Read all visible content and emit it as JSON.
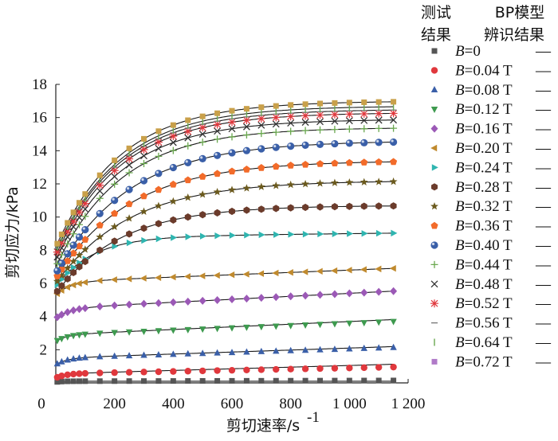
{
  "chart_data": {
    "type": "scatter",
    "xlabel": "剪切速率/s",
    "xlabel_sup": "-1",
    "ylabel": "剪切应力/kPa",
    "xlim": [
      0,
      1200
    ],
    "ylim": [
      0,
      18
    ],
    "x_ticks": [
      {
        "value": 0,
        "label": "0"
      },
      {
        "value": 200,
        "label": "200"
      },
      {
        "value": 400,
        "label": "400"
      },
      {
        "value": 600,
        "label": "600"
      },
      {
        "value": 800,
        "label": "800"
      },
      {
        "value": 1000,
        "label": "1 000"
      },
      {
        "value": 1200,
        "label": "1 200"
      }
    ],
    "y_ticks": [
      {
        "value": 2,
        "label": "2"
      },
      {
        "value": 4,
        "label": "4"
      },
      {
        "value": 6,
        "label": "6"
      },
      {
        "value": 8,
        "label": "8"
      },
      {
        "value": 10,
        "label": "10"
      },
      {
        "value": 12,
        "label": "12"
      },
      {
        "value": 14,
        "label": "14"
      },
      {
        "value": 16,
        "label": "16"
      },
      {
        "value": 18,
        "label": "18"
      }
    ],
    "origin_label": "0",
    "legend": {
      "placement": "right",
      "col1_header": [
        "测试",
        "结果"
      ],
      "col2_header": [
        "BP模型",
        "辨识结果"
      ]
    },
    "x_points": [
      5,
      20,
      40,
      60,
      80,
      100,
      150,
      200,
      250,
      300,
      350,
      400,
      450,
      500,
      550,
      600,
      650,
      700,
      750,
      800,
      850,
      900,
      950,
      1000,
      1050,
      1100,
      1150
    ],
    "series": [
      {
        "name_prefix": "B",
        "name_value": "=0",
        "marker": "square",
        "color": "#555555",
        "tau0": 0.05,
        "A": 0.05,
        "k": 0.05,
        "slope": 4e-05,
        "fit_slope": 0.0
      },
      {
        "name_prefix": "B",
        "name_value": "=0.04 T",
        "marker": "circle",
        "color": "#e0383d",
        "tau0": 0.3,
        "A": 0.25,
        "k": 0.03,
        "slope": 0.00035,
        "fit_slope": 0.0005
      },
      {
        "name_prefix": "B",
        "name_value": "=0.08 T",
        "marker": "triangle-up",
        "color": "#3a5fa8",
        "tau0": 1.1,
        "A": 0.4,
        "k": 0.025,
        "slope": 0.00055,
        "fit_slope": 0.0006
      },
      {
        "name_prefix": "B",
        "name_value": "=0.12 T",
        "marker": "triangle-down",
        "color": "#3e9a4f",
        "tau0": 2.5,
        "A": 0.4,
        "k": 0.025,
        "slope": 0.0007,
        "fit_slope": 0.0008
      },
      {
        "name_prefix": "B",
        "name_value": "=0.16 T",
        "marker": "diamond",
        "color": "#9b59b6",
        "tau0": 3.9,
        "A": 0.6,
        "k": 0.02,
        "slope": 0.0009,
        "fit_slope": 0.0009
      },
      {
        "name_prefix": "B",
        "name_value": "=0.20 T",
        "marker": "triangle-left",
        "color": "#c08a2e",
        "tau0": 5.3,
        "A": 0.8,
        "k": 0.02,
        "slope": 0.0007,
        "fit_slope": 0.0007
      },
      {
        "name_prefix": "B",
        "name_value": "=0.24 T",
        "marker": "triangle-right",
        "color": "#2fb5b0",
        "tau0": 5.8,
        "A": 3.0,
        "k": 0.008,
        "slope": 0.0002,
        "fit_slope": 0.0002
      },
      {
        "name_prefix": "B",
        "name_value": "=0.28 T",
        "marker": "hexagon",
        "color": "#6b3b2b",
        "tau0": 5.4,
        "A": 5.3,
        "k": 0.0045,
        "slope": 0.0,
        "fit_slope": 0.0
      },
      {
        "name_prefix": "B",
        "name_value": "=0.32 T",
        "marker": "star",
        "color": "#6b5a1e",
        "tau0": 6.0,
        "A": 6.2,
        "k": 0.004,
        "slope": 0.0,
        "fit_slope": 0.0
      },
      {
        "name_prefix": "B",
        "name_value": "=0.36 T",
        "marker": "pentagon",
        "color": "#f26b2a",
        "tau0": 6.3,
        "A": 7.1,
        "k": 0.004,
        "slope": 0.0,
        "fit_slope": 0.0
      },
      {
        "name_prefix": "B",
        "name_value": "=0.40 T",
        "marker": "sphere",
        "color": "#3a5fa8",
        "tau0": 6.6,
        "A": 8.0,
        "k": 0.004,
        "slope": 0.0,
        "fit_slope": 0.0
      },
      {
        "name_prefix": "B",
        "name_value": "=0.44 T",
        "marker": "plus",
        "color": "#6aa84f",
        "tau0": 7.0,
        "A": 8.4,
        "k": 0.0045,
        "slope": 0.0,
        "fit_slope": 0.0
      },
      {
        "name_prefix": "B",
        "name_value": "=0.48 T",
        "marker": "cross",
        "color": "#333333",
        "tau0": 7.4,
        "A": 8.5,
        "k": 0.0045,
        "slope": 0.0,
        "fit_slope": 0.0
      },
      {
        "name_prefix": "B",
        "name_value": "=0.52 T",
        "marker": "asterisk",
        "color": "#e0383d",
        "tau0": 7.7,
        "A": 8.6,
        "k": 0.0045,
        "slope": 0.0,
        "fit_slope": 0.0
      },
      {
        "name_prefix": "B",
        "name_value": "=0.56 T",
        "marker": "dash",
        "color": "#7a7a7a",
        "tau0": 7.9,
        "A": 8.6,
        "k": 0.0045,
        "slope": 0.0,
        "fit_slope": 0.0
      },
      {
        "name_prefix": "B",
        "name_value": "=0.64 T",
        "marker": "vbar",
        "color": "#6aa84f",
        "tau0": 8.0,
        "A": 8.7,
        "k": 0.0045,
        "slope": 0.0,
        "fit_slope": 0.0
      },
      {
        "name_prefix": "B",
        "name_value": "=0.72 T",
        "marker": "square",
        "color": "#b07ac8",
        "tau0": 8.2,
        "A": 8.8,
        "k": 0.0045,
        "slope": 0.0,
        "fit_slope": 0.0,
        "highlight_color": "#c9a04a"
      }
    ],
    "line_label": "—"
  }
}
